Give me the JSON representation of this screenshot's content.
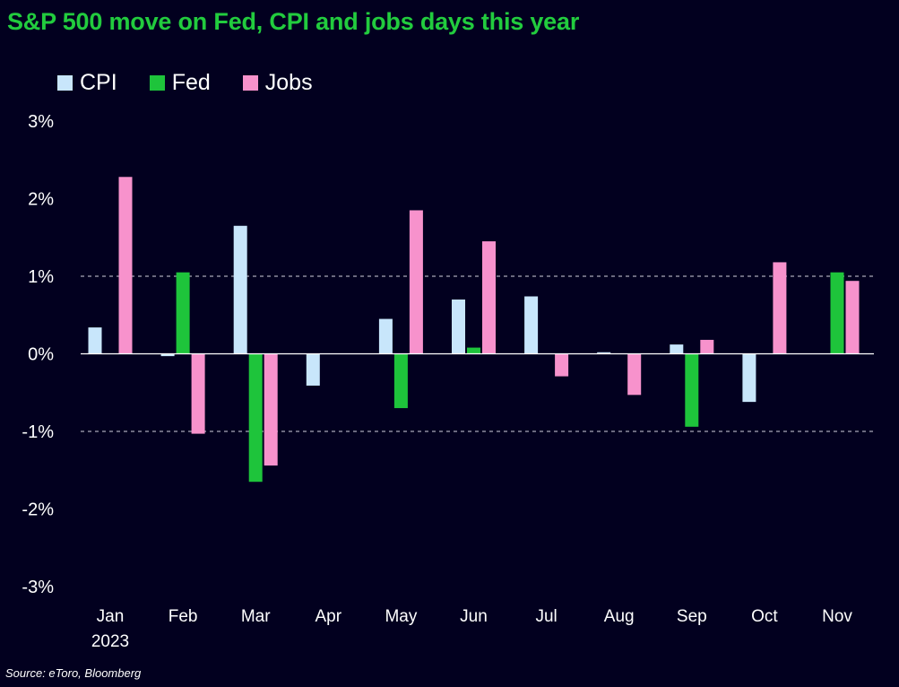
{
  "colors": {
    "background": "#02001f",
    "title": "#22cc3e",
    "text": "#ffffff",
    "gridline": "#a8a8b8"
  },
  "chart_data": {
    "type": "bar",
    "title": "S&P 500 move on Fed, CPI and jobs days this year",
    "source": "Source: eToro, Bloomberg",
    "xlabel": "",
    "ylabel": "",
    "year_label": "2023",
    "categories": [
      "Jan",
      "Feb",
      "Mar",
      "Apr",
      "May",
      "Jun",
      "Jul",
      "Aug",
      "Sep",
      "Oct",
      "Nov"
    ],
    "ylim": [
      -3,
      3
    ],
    "yticks": [
      3,
      2,
      1,
      0,
      -1,
      -2,
      -3
    ],
    "ytick_labels": [
      "3%",
      "2%",
      "1%",
      "0%",
      "-1%",
      "-2%",
      "-3%"
    ],
    "dashed_gridlines": [
      1,
      -1
    ],
    "zero_line": 0,
    "legend_position": "top-left",
    "series": [
      {
        "name": "CPI",
        "color": "#c8e6fb",
        "values": [
          0.34,
          -0.03,
          1.65,
          -0.41,
          0.45,
          0.7,
          0.74,
          0.02,
          0.12,
          -0.62,
          null
        ]
      },
      {
        "name": "Fed",
        "color": "#1ec43b",
        "values": [
          null,
          1.05,
          -1.65,
          null,
          -0.7,
          0.08,
          null,
          null,
          -0.94,
          null,
          1.05
        ]
      },
      {
        "name": "Jobs",
        "color": "#f792cc",
        "values": [
          2.28,
          -1.03,
          -1.44,
          null,
          1.85,
          1.45,
          -0.29,
          -0.53,
          0.18,
          1.18,
          0.94
        ]
      }
    ]
  }
}
